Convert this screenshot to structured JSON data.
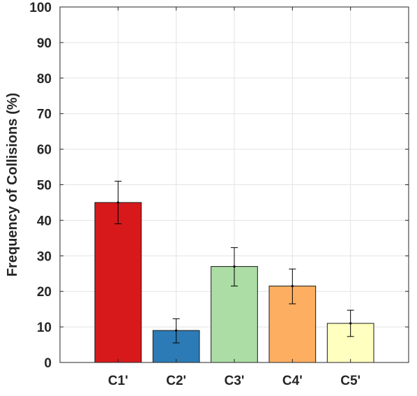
{
  "chart_data": {
    "type": "bar",
    "title": "",
    "xlabel": "",
    "ylabel": "Frequency of Collisions (%)",
    "categories": [
      "C1'",
      "C2'",
      "C3'",
      "C4'",
      "C5'"
    ],
    "values": [
      45,
      9,
      27,
      21.5,
      11
    ],
    "error_low": [
      39,
      5.5,
      21.5,
      16.5,
      7.3
    ],
    "error_high": [
      51,
      12.3,
      32.3,
      26.3,
      14.7
    ],
    "colors": [
      "#d7191c",
      "#2c7bb6",
      "#abdda4",
      "#fdae61",
      "#ffffbf"
    ],
    "ylim": [
      0,
      100
    ],
    "yticks": [
      "0",
      "10",
      "20",
      "30",
      "40",
      "50",
      "60",
      "70",
      "80",
      "90",
      "100"
    ],
    "grid": true
  }
}
